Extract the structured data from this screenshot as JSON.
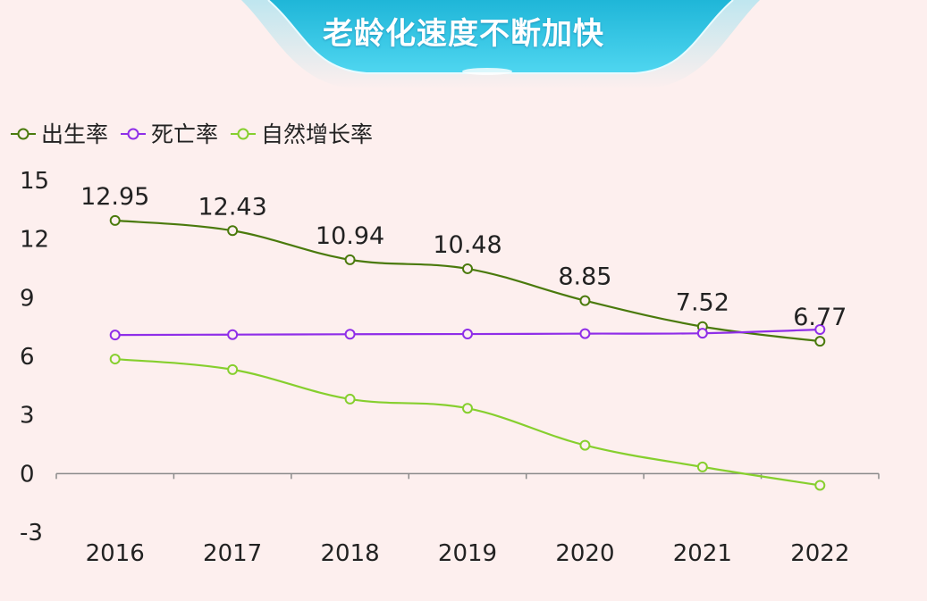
{
  "title": "老龄化速度不断加快",
  "colors": {
    "birth": "#4a7a0c",
    "death": "#8f2ee8",
    "natural": "#86cf2e"
  },
  "chart_data": {
    "type": "line",
    "categories": [
      "2016",
      "2017",
      "2018",
      "2019",
      "2020",
      "2021",
      "2022"
    ],
    "y_ticks": [
      "15",
      "12",
      "9",
      "6",
      "3",
      "0",
      "-3"
    ],
    "ylim": [
      -3,
      15
    ],
    "legend_position": "top-left",
    "series": [
      {
        "name": "出生率",
        "values": [
          12.95,
          12.43,
          10.94,
          10.48,
          8.85,
          7.52,
          6.77
        ],
        "labels": [
          "12.95",
          "12.43",
          "10.94",
          "10.48",
          "8.85",
          "7.52",
          "6.77"
        ]
      },
      {
        "name": "死亡率",
        "values": [
          7.09,
          7.11,
          7.13,
          7.14,
          7.16,
          7.18,
          7.37
        ]
      },
      {
        "name": "自然增长率",
        "values": [
          5.86,
          5.32,
          3.81,
          3.34,
          1.45,
          0.34,
          -0.6
        ]
      }
    ]
  }
}
